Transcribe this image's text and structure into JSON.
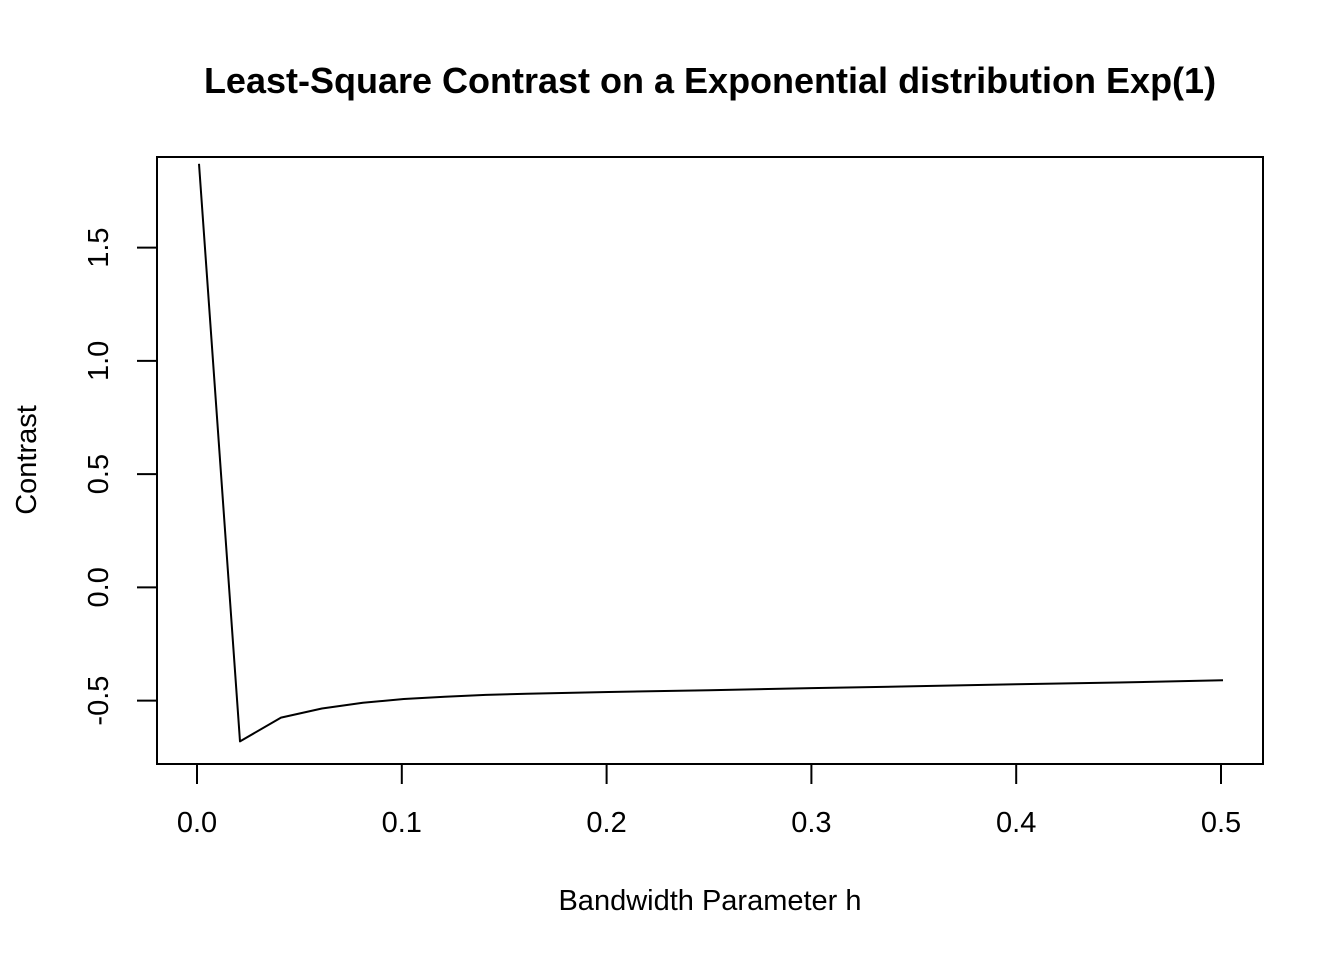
{
  "chart_data": {
    "type": "line",
    "title": "Least-Square Contrast on a Exponential distribution Exp(1)",
    "xlabel": "Bandwidth Parameter h",
    "ylabel": "Contrast",
    "xlim": [
      0.0,
      0.5
    ],
    "ylim": [
      -0.78,
      1.9
    ],
    "xticks": [
      0.0,
      0.1,
      0.2,
      0.3,
      0.4,
      0.5
    ],
    "xtick_labels": [
      "0.0",
      "0.1",
      "0.2",
      "0.3",
      "0.4",
      "0.5"
    ],
    "yticks": [
      -0.5,
      0.0,
      0.5,
      1.0,
      1.5
    ],
    "ytick_labels": [
      "-0.5",
      "0.0",
      "0.5",
      "1.0",
      "1.5"
    ],
    "grid": false,
    "series": [
      {
        "x": [
          0.001,
          0.021,
          0.041,
          0.061,
          0.081,
          0.101,
          0.121,
          0.141,
          0.161,
          0.181,
          0.201,
          0.25,
          0.3,
          0.35,
          0.4,
          0.45,
          0.501
        ],
        "y": [
          1.87,
          -0.68,
          -0.575,
          -0.535,
          -0.51,
          -0.493,
          -0.483,
          -0.475,
          -0.47,
          -0.466,
          -0.462,
          -0.454,
          -0.445,
          -0.437,
          -0.428,
          -0.42,
          -0.41
        ],
        "color": "#000000"
      }
    ]
  }
}
